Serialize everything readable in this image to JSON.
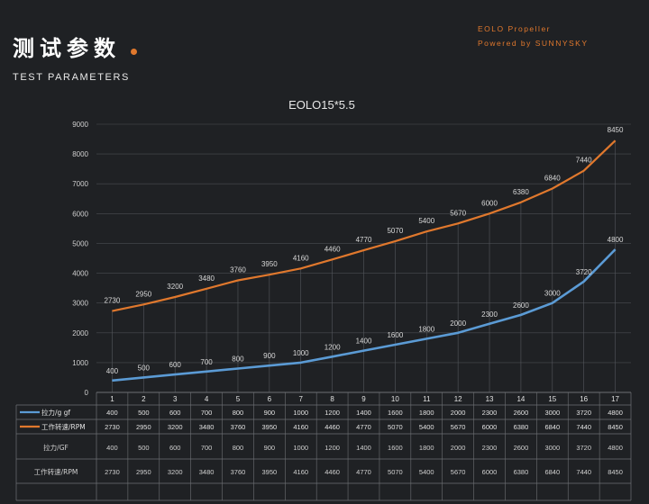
{
  "header": {
    "title_cn": "测试参数",
    "title_en": "TEST PARAMETERS",
    "brand_line1": "EOLO Propeller",
    "brand_line2": "Powered by SUNNYSKY"
  },
  "colors": {
    "background": "#1f2124",
    "thrust_series": "#5b9bd5",
    "rpm_series": "#e0782d",
    "grid": "#4a4c50",
    "text": "#e6e6e6"
  },
  "chart_data": {
    "type": "line",
    "title": "EOLO15*5.5",
    "xlabel": "",
    "ylabel": "",
    "ylim": [
      0,
      9000
    ],
    "yticks": [
      "0",
      "1000",
      "2000",
      "3000",
      "4000",
      "5000",
      "6000",
      "7000",
      "8000",
      "9000"
    ],
    "grid": true,
    "categories": [
      "1",
      "2",
      "3",
      "4",
      "5",
      "6",
      "7",
      "8",
      "9",
      "10",
      "11",
      "12",
      "13",
      "14",
      "15",
      "16",
      "17"
    ],
    "series": [
      {
        "name": "拉力/g gf",
        "color": "#5b9bd5",
        "values": [
          400,
          500,
          600,
          700,
          800,
          900,
          1000,
          1200,
          1400,
          1600,
          1800,
          2000,
          2300,
          2600,
          3000,
          3720,
          4800
        ]
      },
      {
        "name": "工作转速/RPM",
        "color": "#e0782d",
        "values": [
          2730,
          2950,
          3200,
          3480,
          3760,
          3950,
          4160,
          4460,
          4770,
          5070,
          5400,
          5670,
          6000,
          6380,
          6840,
          7440,
          8450
        ]
      }
    ],
    "table": {
      "rows": [
        {
          "label": "拉力/GF",
          "values": [
            "400",
            "500",
            "600",
            "700",
            "800",
            "900",
            "1000",
            "1200",
            "1400",
            "1600",
            "1800",
            "2000",
            "2300",
            "2600",
            "3000",
            "3720",
            "4800"
          ]
        },
        {
          "label": "工作转速/RPM",
          "values": [
            "2730",
            "2950",
            "3200",
            "3480",
            "3760",
            "3950",
            "4160",
            "4460",
            "4770",
            "5070",
            "5400",
            "5670",
            "6000",
            "6380",
            "6840",
            "7440",
            "8450"
          ]
        }
      ]
    }
  }
}
